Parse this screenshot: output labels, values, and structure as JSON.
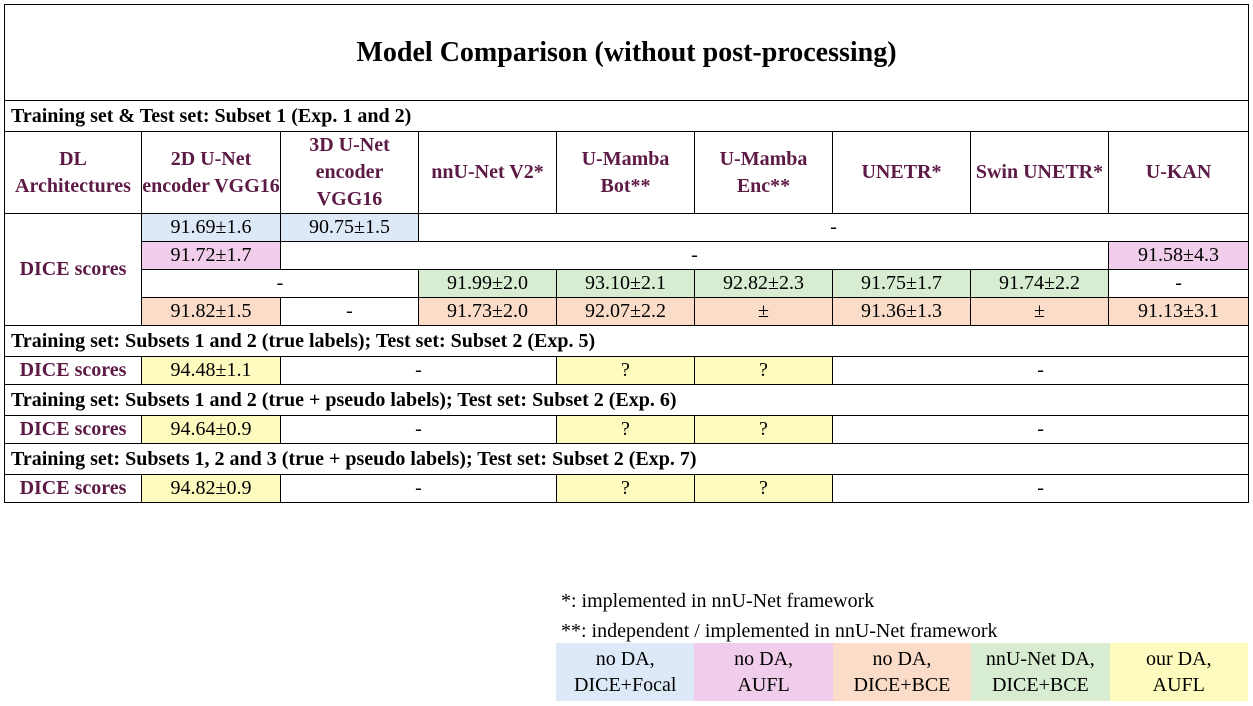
{
  "title": "Model Comparison (without post-processing)",
  "section1": "Training set & Test set: Subset 1 (Exp. 1 and 2)",
  "headers": {
    "dl": "DL Architectures",
    "c1": "2D U-Net encoder VGG16",
    "c2": "3D U-Net encoder VGG16",
    "c3": "nnU-Net V2*",
    "c4": "U-Mamba Bot**",
    "c5": "U-Mamba Enc**",
    "c6": "UNETR*",
    "c7": "Swin UNETR*",
    "c8": "U-KAN"
  },
  "dice_label": "DICE scores",
  "block1": {
    "r1": [
      "91.69±1.6",
      "90.75±1.5",
      "-"
    ],
    "r2": [
      "91.72±1.7",
      "-",
      "91.58±4.3"
    ],
    "r3": [
      "-",
      "91.99±2.0",
      "93.10±2.1",
      "92.82±2.3",
      "91.75±1.7",
      "91.74±2.2",
      "-"
    ],
    "r4": [
      "91.82±1.5",
      "-",
      "91.73±2.0",
      "92.07±2.2",
      "±",
      "91.36±1.3",
      "±",
      "91.13±3.1"
    ]
  },
  "section2": "Training set: Subsets 1 and 2 (true labels); Test set: Subset 2 (Exp. 5)",
  "exp5": [
    "94.48±1.1",
    "-",
    "?",
    "?",
    "-"
  ],
  "section3": "Training set: Subsets 1 and 2 (true + pseudo labels); Test set: Subset 2 (Exp. 6)",
  "exp6": [
    "94.64±0.9",
    "-",
    "?",
    "?",
    "-"
  ],
  "section4": "Training set: Subsets 1, 2 and 3 (true + pseudo labels); Test set: Subset 2 (Exp. 7)",
  "exp7": [
    "94.82±0.9",
    "-",
    "?",
    "?",
    "-"
  ],
  "notes": {
    "n1": "*: implemented in nnU-Net framework",
    "n2": "**: independent / implemented in nnU-Net framework"
  },
  "legend": [
    {
      "l1": "no DA,",
      "l2": "DICE+Focal",
      "color": "#dde9f6"
    },
    {
      "l1": "no DA,",
      "l2": "AUFL",
      "color": "#f0cdea"
    },
    {
      "l1": "no DA,",
      "l2": "DICE+BCE",
      "color": "#fadcc9"
    },
    {
      "l1": "nnU-Net DA,",
      "l2": "DICE+BCE",
      "color": "#d8ecd2"
    },
    {
      "l1": "our DA,",
      "l2": "AUFL",
      "color": "#fdfbbe"
    }
  ]
}
